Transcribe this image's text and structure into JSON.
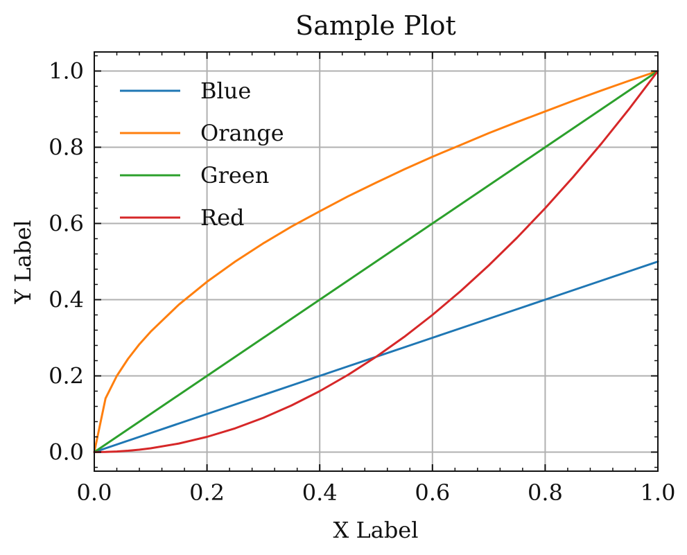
{
  "chart_data": {
    "type": "line",
    "title": "Sample Plot",
    "xlabel": "X Label",
    "ylabel": "Y Label",
    "xlim": [
      0,
      1
    ],
    "ylim": [
      -0.05,
      1.05
    ],
    "x_ticks": [
      "0.0",
      "0.2",
      "0.4",
      "0.6",
      "0.8",
      "1.0"
    ],
    "y_ticks": [
      "0.0",
      "0.2",
      "0.4",
      "0.6",
      "0.8",
      "1.0"
    ],
    "grid": true,
    "legend_position": "top-left",
    "x": [
      0,
      0.02,
      0.04,
      0.06,
      0.08,
      0.1,
      0.15,
      0.2,
      0.25,
      0.3,
      0.35,
      0.4,
      0.45,
      0.5,
      0.55,
      0.6,
      0.65,
      0.7,
      0.75,
      0.8,
      0.85,
      0.9,
      0.95,
      1.0
    ],
    "series": [
      {
        "name": "Blue",
        "color": "#1f77b4",
        "values": [
          0,
          0.01,
          0.02,
          0.03,
          0.04,
          0.05,
          0.075,
          0.1,
          0.125,
          0.15,
          0.175,
          0.2,
          0.225,
          0.25,
          0.275,
          0.3,
          0.325,
          0.35,
          0.375,
          0.4,
          0.425,
          0.45,
          0.475,
          0.5
        ]
      },
      {
        "name": "Orange",
        "color": "#ff7f0e",
        "values": [
          0,
          0.141,
          0.2,
          0.245,
          0.283,
          0.316,
          0.387,
          0.447,
          0.5,
          0.548,
          0.592,
          0.632,
          0.671,
          0.707,
          0.742,
          0.775,
          0.806,
          0.837,
          0.866,
          0.894,
          0.922,
          0.949,
          0.975,
          1.0
        ]
      },
      {
        "name": "Green",
        "color": "#2ca02c",
        "values": [
          0,
          0.02,
          0.04,
          0.06,
          0.08,
          0.1,
          0.15,
          0.2,
          0.25,
          0.3,
          0.35,
          0.4,
          0.45,
          0.5,
          0.55,
          0.6,
          0.65,
          0.7,
          0.75,
          0.8,
          0.85,
          0.9,
          0.95,
          1.0
        ]
      },
      {
        "name": "Red",
        "color": "#d62728",
        "values": [
          0,
          0.0004,
          0.0016,
          0.0036,
          0.0064,
          0.01,
          0.0225,
          0.04,
          0.0625,
          0.09,
          0.1225,
          0.16,
          0.2025,
          0.25,
          0.3025,
          0.36,
          0.4225,
          0.49,
          0.5625,
          0.64,
          0.7225,
          0.81,
          0.9025,
          1.0
        ]
      }
    ]
  }
}
